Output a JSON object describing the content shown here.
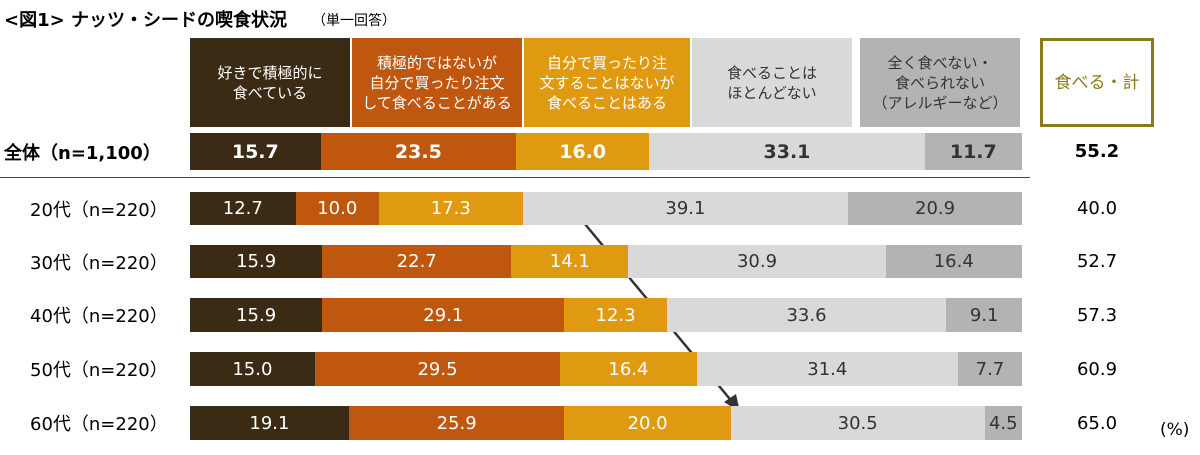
{
  "chart_data": {
    "type": "stacked-bar-100",
    "title": "<図1> ナッツ・シードの喫食状況",
    "subtitle": "（単一回答）",
    "categories": [
      "全体（n=1,100）",
      "20代（n=220）",
      "30代（n=220）",
      "40代（n=220）",
      "50代（n=220）",
      "60代（n=220）"
    ],
    "xlim": [
      0,
      100
    ],
    "series": [
      {
        "name": "好きで積極的に\n食べている",
        "color": "#3b2b14",
        "text_color": "#ffffff",
        "values": [
          15.7,
          12.7,
          15.9,
          15.9,
          15.0,
          19.1
        ],
        "value_labels": [
          "15.7",
          "12.7",
          "15.9",
          "15.9",
          "15.0",
          "19.1"
        ]
      },
      {
        "name": "積極的ではないが\n自分で買ったり注文\nして食べることがある",
        "color": "#c0570e",
        "text_color": "#ffffff",
        "values": [
          23.5,
          10.0,
          22.7,
          29.1,
          29.5,
          25.9
        ],
        "value_labels": [
          "23.5",
          "10.0",
          "22.7",
          "29.1",
          "29.5",
          "25.9"
        ]
      },
      {
        "name": "自分で買ったり注\n文することはないが\n食べることはある",
        "color": "#e09a12",
        "text_color": "#ffffff",
        "values": [
          16.0,
          17.3,
          14.1,
          12.3,
          16.4,
          20.0
        ],
        "value_labels": [
          "16.0",
          "17.3",
          "14.1",
          "12.3",
          "16.4",
          "20.0"
        ]
      },
      {
        "name": "食べることは\nほとんどない",
        "color": "#d9d9d9",
        "text_color": "#333333",
        "values": [
          33.1,
          39.1,
          30.9,
          33.6,
          31.4,
          30.5
        ],
        "value_labels": [
          "33.1",
          "39.1",
          "30.9",
          "33.6",
          "31.4",
          "30.5"
        ]
      },
      {
        "name": "全く食べない・\n食べられない\n（アレルギーなど）",
        "color": "#b3b3b3",
        "text_color": "#333333",
        "values": [
          11.7,
          20.9,
          16.4,
          9.1,
          7.7,
          4.5
        ],
        "value_labels": [
          "11.7",
          "20.9",
          "16.4",
          "9.1",
          "7.7",
          "4.5"
        ]
      }
    ],
    "totals": {
      "name": "食べる・計",
      "color": "#8a7a1a",
      "values": [
        55.2,
        40.0,
        52.7,
        57.3,
        60.9,
        65.0
      ],
      "value_labels": [
        "55.2",
        "40.0",
        "52.7",
        "57.3",
        "60.9",
        "65.0"
      ]
    },
    "unit_label": "(%)"
  }
}
